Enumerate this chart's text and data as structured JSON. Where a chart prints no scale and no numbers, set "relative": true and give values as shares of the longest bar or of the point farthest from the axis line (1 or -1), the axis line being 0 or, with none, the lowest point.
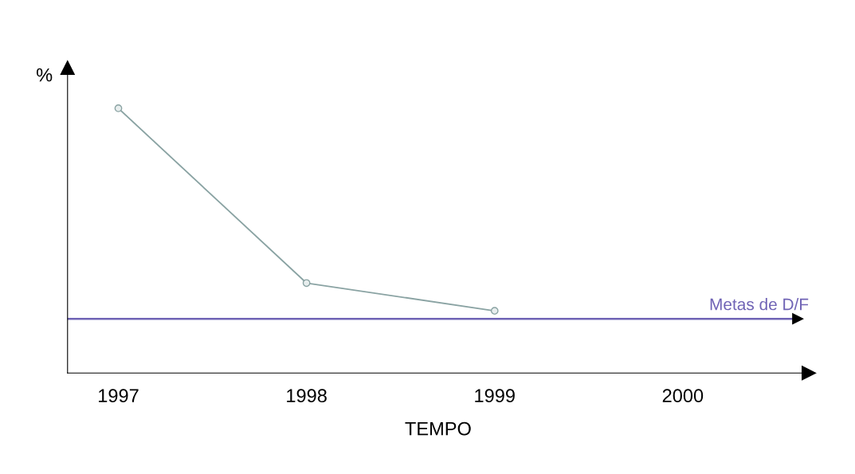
{
  "chart_data": {
    "type": "line",
    "relative": true,
    "ylabel": "%",
    "xlabel": "TEMPO",
    "categories": [
      "1997",
      "1998",
      "1999",
      "2000"
    ],
    "series": [
      {
        "color": "#8aa3a3",
        "values": [
          1,
          0.34,
          0.235,
          null
        ]
      }
    ],
    "marker": "circle",
    "grid": false,
    "tick_labels": "x",
    "ref_lines": [
      {
        "axis": "y",
        "value": 0.205,
        "label": "Metas de D/F",
        "color": "#6f63b5",
        "line_style": "solid"
      }
    ]
  }
}
